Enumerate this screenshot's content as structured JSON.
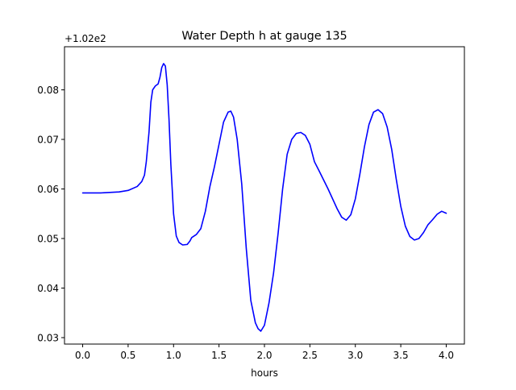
{
  "chart_data": {
    "type": "line",
    "title": "Water Depth h at gauge 135",
    "xlabel": "hours",
    "ylabel": "",
    "offset_label": "+1.02e2",
    "xlim": [
      -0.2,
      4.2
    ],
    "ylim": [
      0.0287,
      0.0887
    ],
    "xticks": [
      0.0,
      0.5,
      1.0,
      1.5,
      2.0,
      2.5,
      3.0,
      3.5,
      4.0
    ],
    "xtick_labels": [
      "0.0",
      "0.5",
      "1.0",
      "1.5",
      "2.0",
      "2.5",
      "3.0",
      "3.5",
      "4.0"
    ],
    "yticks": [
      0.03,
      0.04,
      0.05,
      0.06,
      0.07,
      0.08
    ],
    "ytick_labels": [
      "0.03",
      "0.04",
      "0.05",
      "0.06",
      "0.07",
      "0.08"
    ],
    "grid": false,
    "series": [
      {
        "color": "#0000ff",
        "x": [
          0.0,
          0.2,
          0.4,
          0.5,
          0.6,
          0.65,
          0.68,
          0.7,
          0.73,
          0.75,
          0.77,
          0.8,
          0.83,
          0.85,
          0.87,
          0.89,
          0.91,
          0.93,
          0.95,
          0.97,
          1.0,
          1.03,
          1.06,
          1.1,
          1.15,
          1.18,
          1.2,
          1.25,
          1.3,
          1.35,
          1.4,
          1.45,
          1.5,
          1.55,
          1.6,
          1.63,
          1.66,
          1.7,
          1.75,
          1.8,
          1.85,
          1.9,
          1.93,
          1.96,
          2.0,
          2.05,
          2.1,
          2.15,
          2.2,
          2.25,
          2.3,
          2.35,
          2.4,
          2.45,
          2.5,
          2.55,
          2.6,
          2.7,
          2.8,
          2.85,
          2.9,
          2.95,
          3.0,
          3.05,
          3.1,
          3.15,
          3.2,
          3.25,
          3.3,
          3.35,
          3.4,
          3.45,
          3.5,
          3.55,
          3.6,
          3.65,
          3.7,
          3.75,
          3.8,
          3.85,
          3.9,
          3.95,
          4.0
        ],
        "y": [
          0.0592,
          0.0592,
          0.0594,
          0.0597,
          0.0605,
          0.0615,
          0.0628,
          0.0655,
          0.0715,
          0.0775,
          0.08,
          0.0808,
          0.0812,
          0.0825,
          0.0845,
          0.0853,
          0.0848,
          0.081,
          0.074,
          0.065,
          0.055,
          0.0505,
          0.0492,
          0.0487,
          0.0488,
          0.0495,
          0.0502,
          0.0508,
          0.052,
          0.0555,
          0.0605,
          0.0645,
          0.069,
          0.0735,
          0.0755,
          0.0757,
          0.0745,
          0.07,
          0.061,
          0.048,
          0.0375,
          0.033,
          0.0318,
          0.0313,
          0.0325,
          0.037,
          0.043,
          0.051,
          0.06,
          0.067,
          0.07,
          0.0712,
          0.0714,
          0.0708,
          0.069,
          0.0655,
          0.0637,
          0.06,
          0.056,
          0.0543,
          0.0537,
          0.0548,
          0.058,
          0.063,
          0.0685,
          0.073,
          0.0755,
          0.076,
          0.0752,
          0.0725,
          0.068,
          0.062,
          0.0565,
          0.0525,
          0.0504,
          0.0497,
          0.05,
          0.0512,
          0.0528,
          0.0538,
          0.0549,
          0.0555,
          0.0551
        ]
      }
    ]
  }
}
